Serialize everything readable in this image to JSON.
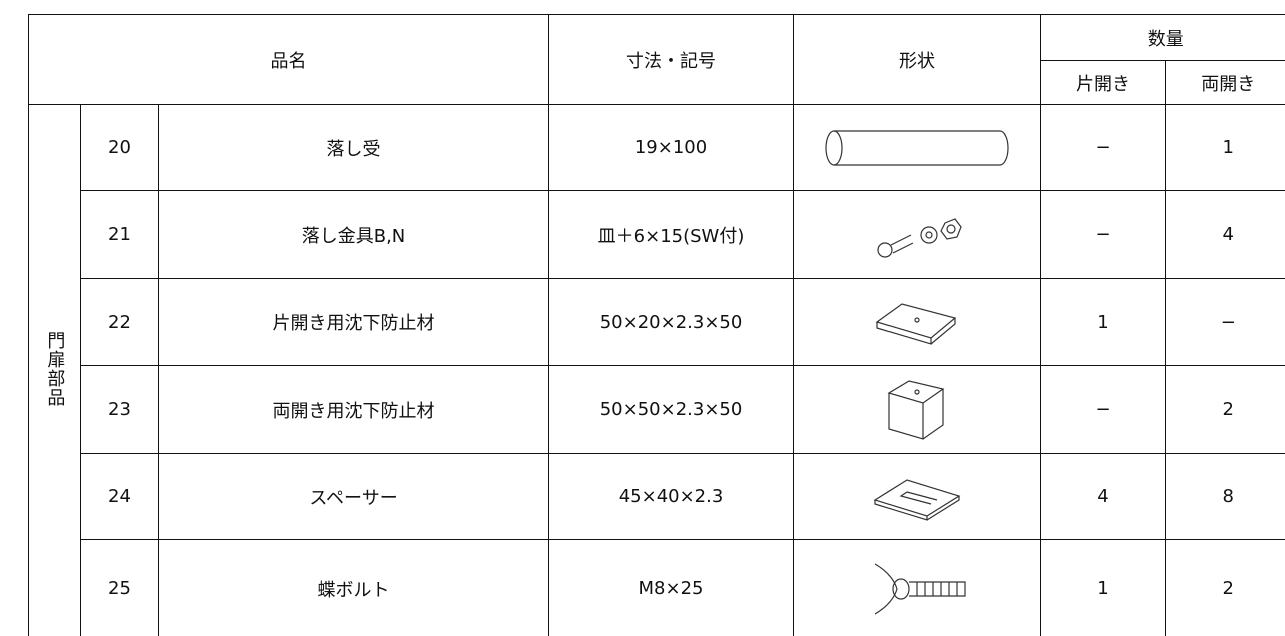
{
  "header": {
    "name": "品名",
    "dims": "寸法・記号",
    "shape": "形状",
    "qty": "数量",
    "single": "片開き",
    "double": "両開き"
  },
  "group": "門扉部品",
  "rows": [
    {
      "no": "20",
      "name": "落し受",
      "dims": "19×100",
      "single": "−",
      "double": "1"
    },
    {
      "no": "21",
      "name": "落し金具B,N",
      "dims": "皿＋6×15(SW付)",
      "single": "−",
      "double": "4"
    },
    {
      "no": "22",
      "name": "片開き用沈下防止材",
      "dims": "50×20×2.3×50",
      "single": "1",
      "double": "−"
    },
    {
      "no": "23",
      "name": "両開き用沈下防止材",
      "dims": "50×50×2.3×50",
      "single": "−",
      "double": "2"
    },
    {
      "no": "24",
      "name": "スペーサー",
      "dims": "45×40×2.3",
      "single": "4",
      "double": "8"
    },
    {
      "no": "25",
      "name": "蝶ボルト",
      "dims": "M8×25",
      "single": "1",
      "double": "2"
    }
  ]
}
